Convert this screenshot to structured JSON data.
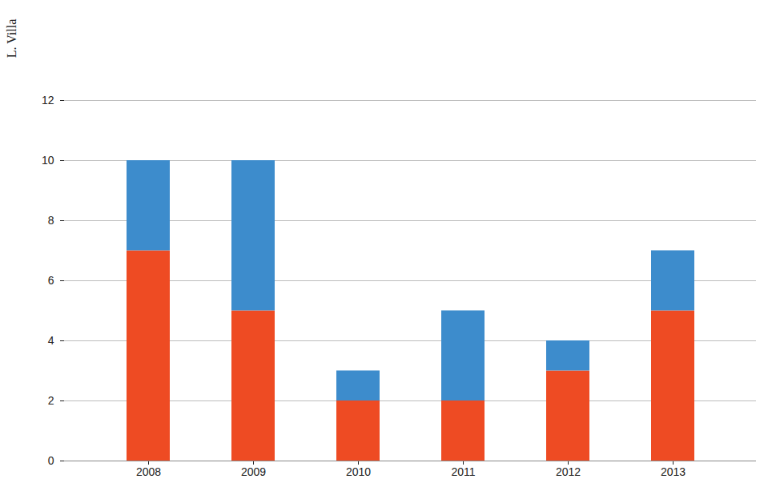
{
  "chart_data": {
    "type": "bar",
    "stacked": true,
    "annotation": "L. Villa",
    "categories": [
      "2008",
      "2009",
      "2010",
      "2011",
      "2012",
      "2013"
    ],
    "series": [
      {
        "color": "#ee4b23",
        "values": [
          7,
          5,
          2,
          2,
          3,
          5
        ]
      },
      {
        "color": "#3d8ccc",
        "values": [
          3,
          5,
          1,
          3,
          1,
          2
        ]
      }
    ],
    "ylim": [
      0,
      12
    ],
    "yticks": [
      0,
      2,
      4,
      6,
      8,
      10,
      12
    ],
    "grid": true
  }
}
